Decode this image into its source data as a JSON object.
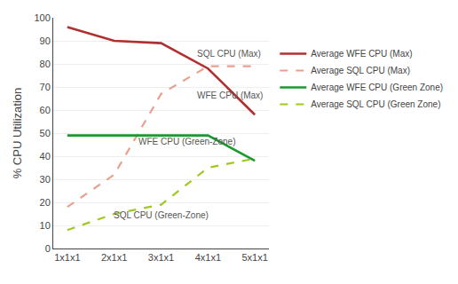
{
  "chart_data": {
    "type": "line",
    "x": [
      1,
      2,
      3,
      4,
      5
    ],
    "xlim": [
      0.7,
      5.3
    ],
    "xticks": [
      {
        "value": 1,
        "label": "1x1x1"
      },
      {
        "value": 2,
        "label": "2x1x1"
      },
      {
        "value": 3,
        "label": "3x1x1"
      },
      {
        "value": 4,
        "label": "4x1x1"
      },
      {
        "value": 5,
        "label": "5x1x1"
      }
    ],
    "ylabel": "% CPU Utilization",
    "ylim": [
      0,
      100
    ],
    "yticks": [
      0,
      10,
      20,
      30,
      40,
      50,
      60,
      70,
      80,
      90,
      100
    ],
    "grid": true,
    "legend": "right",
    "series": [
      {
        "name": "Average WFE CPU (Max)",
        "color": "#b03030",
        "line_style": "solid",
        "values": [
          96,
          90,
          89,
          78,
          58
        ]
      },
      {
        "name": "Average SQL CPU (Max)",
        "color": "#e8a090",
        "line_style": "dashed",
        "values": [
          18,
          32,
          67,
          79,
          79
        ]
      },
      {
        "name": "Average WFE CPU (Green Zone)",
        "color": "#1a9a2a",
        "line_style": "solid",
        "values": [
          49,
          49,
          49,
          49,
          38
        ]
      },
      {
        "name": "Average SQL CPU (Green Zone)",
        "color": "#a0c820",
        "line_style": "dashed",
        "values": [
          8,
          15,
          19,
          35,
          39
        ]
      }
    ],
    "annotations": [
      {
        "text": "SQL CPU (Max)",
        "x": 3.72,
        "y": 81.5
      },
      {
        "text": "WFE CPU (Max)",
        "x": 3.72,
        "y": 63.5
      },
      {
        "text": "WFE CPU (Green-Zone)",
        "x": 2.48,
        "y": 43.5
      },
      {
        "text": "SQL CPU (Green-Zone)",
        "x": 1.95,
        "y": 11.5
      }
    ]
  }
}
